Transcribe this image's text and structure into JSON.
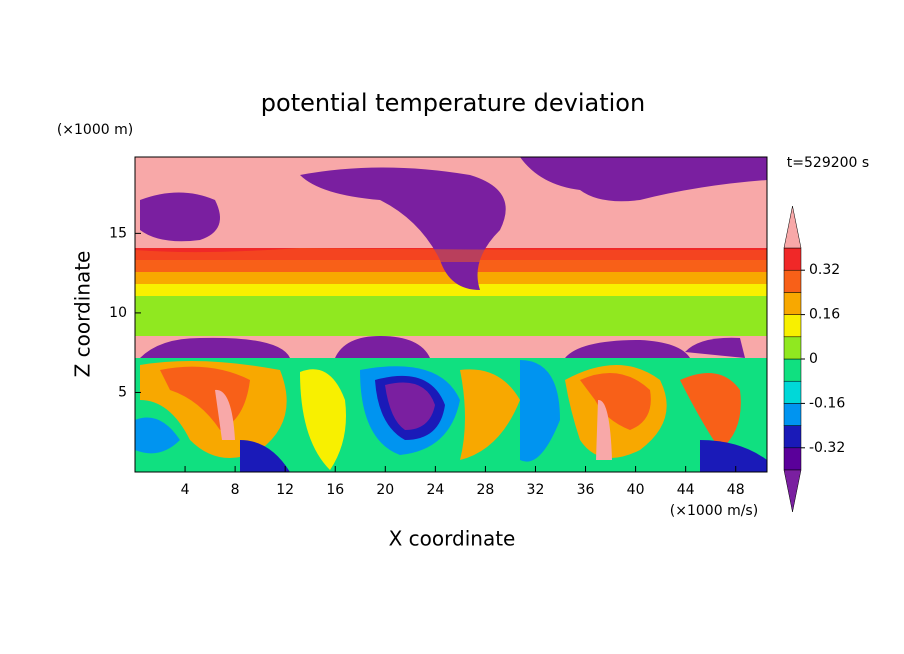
{
  "chart_data": {
    "type": "contour",
    "title": "potential temperature deviation",
    "x_label": "X coordinate",
    "y_label": "Z coordinate",
    "x_unit": "(×1000 m/s)",
    "y_unit": "(×1000 m)",
    "time_label": "t=529200 s",
    "xlim": [
      0,
      50.5
    ],
    "ylim": [
      0,
      19.8
    ],
    "xticks": [
      4,
      8,
      12,
      16,
      20,
      24,
      28,
      32,
      36,
      40,
      44,
      48
    ],
    "yticks": [
      5,
      10,
      15
    ],
    "levels": [
      -0.4,
      -0.32,
      -0.24,
      -0.16,
      -0.08,
      0,
      0.08,
      0.16,
      0.24,
      0.32,
      0.4
    ],
    "colors": [
      "#7a1fa0",
      "#5a009a",
      "#1a1ab8",
      "#0094f0",
      "#00d8d8",
      "#10e080",
      "#90e820",
      "#f8f000",
      "#f8a800",
      "#f86018",
      "#f02828",
      "#f8a8a8"
    ],
    "colorbar_ticks": [
      -0.32,
      -0.16,
      0,
      0.16,
      0.32
    ]
  }
}
